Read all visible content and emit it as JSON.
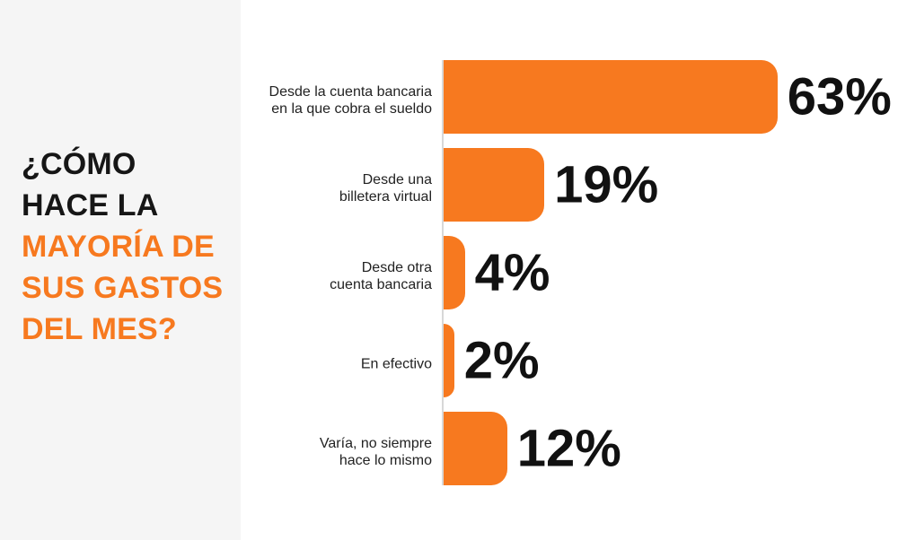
{
  "title": {
    "lines": [
      {
        "text": "¿CÓMO",
        "accent": false
      },
      {
        "text": "HACE LA",
        "accent": false
      },
      {
        "text": "MAYORÍA DE",
        "accent": true
      },
      {
        "text": "SUS GASTOS",
        "accent": true
      },
      {
        "text": "DEL MES?",
        "accent": true
      }
    ]
  },
  "chart_data": {
    "type": "bar",
    "orientation": "horizontal",
    "title": "¿Cómo hace la mayoría de sus gastos del mes?",
    "categories": [
      [
        "Desde la cuenta bancaria",
        "en la que cobra el sueldo"
      ],
      [
        "Desde una",
        "billetera virtual"
      ],
      [
        "Desde otra",
        "cuenta bancaria"
      ],
      [
        "En efectivo"
      ],
      [
        "Varía, no siempre",
        "hace lo mismo"
      ]
    ],
    "values": [
      63,
      19,
      4,
      2,
      12
    ],
    "value_labels": [
      "63%",
      "19%",
      "4%",
      "2%",
      "12%"
    ],
    "xlim": [
      0,
      100
    ],
    "grid": false,
    "legend": false,
    "bar_color": "#F7791F"
  },
  "colors": {
    "bar_orange": "#F7791F",
    "title_dark": "#161616",
    "title_accent": "#F7791F",
    "panel_bg": "#F5F5F5",
    "axis_line": "#D8D8D8",
    "value_text": "#111111",
    "category_text": "#222222",
    "background": "#FFFFFF"
  }
}
